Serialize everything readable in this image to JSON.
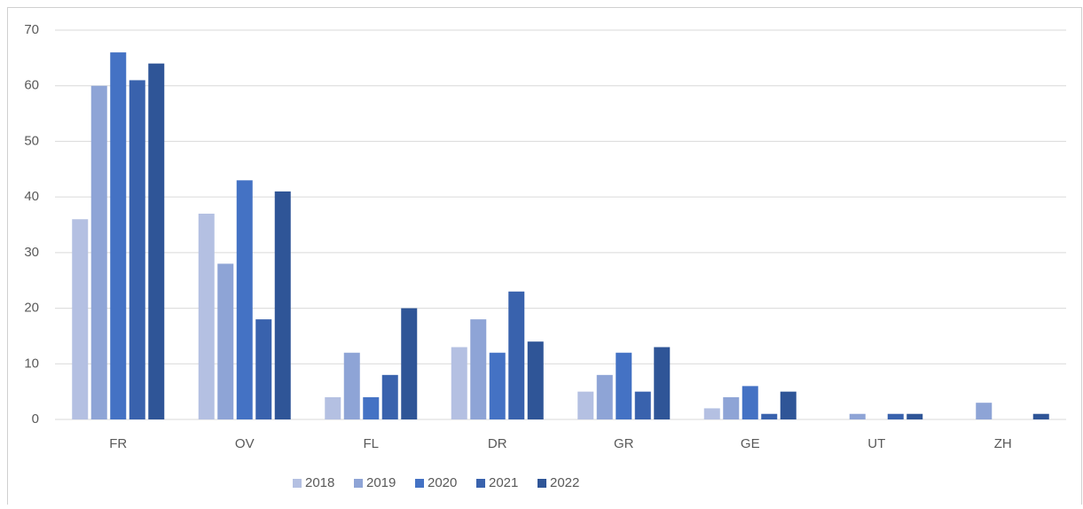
{
  "chart_data": {
    "type": "bar",
    "categories": [
      "FR",
      "OV",
      "FL",
      "DR",
      "GR",
      "GE",
      "UT",
      "ZH"
    ],
    "series": [
      {
        "name": "2018",
        "color": "#b4c0e2",
        "values": [
          36,
          37,
          4,
          13,
          5,
          2,
          0,
          0
        ]
      },
      {
        "name": "2019",
        "color": "#8ea4d6",
        "values": [
          60,
          28,
          12,
          18,
          8,
          4,
          1,
          3
        ]
      },
      {
        "name": "2020",
        "color": "#4472c4",
        "values": [
          66,
          43,
          4,
          12,
          12,
          6,
          0,
          0
        ]
      },
      {
        "name": "2021",
        "color": "#3962ad",
        "values": [
          61,
          18,
          8,
          23,
          5,
          1,
          1,
          0
        ]
      },
      {
        "name": "2022",
        "color": "#2f5597",
        "values": [
          64,
          41,
          20,
          14,
          13,
          5,
          1,
          1
        ]
      }
    ],
    "ylim": [
      0,
      70
    ],
    "yticks": [
      0,
      10,
      20,
      30,
      40,
      50,
      60,
      70
    ],
    "grid": true,
    "legend": "bottom"
  }
}
